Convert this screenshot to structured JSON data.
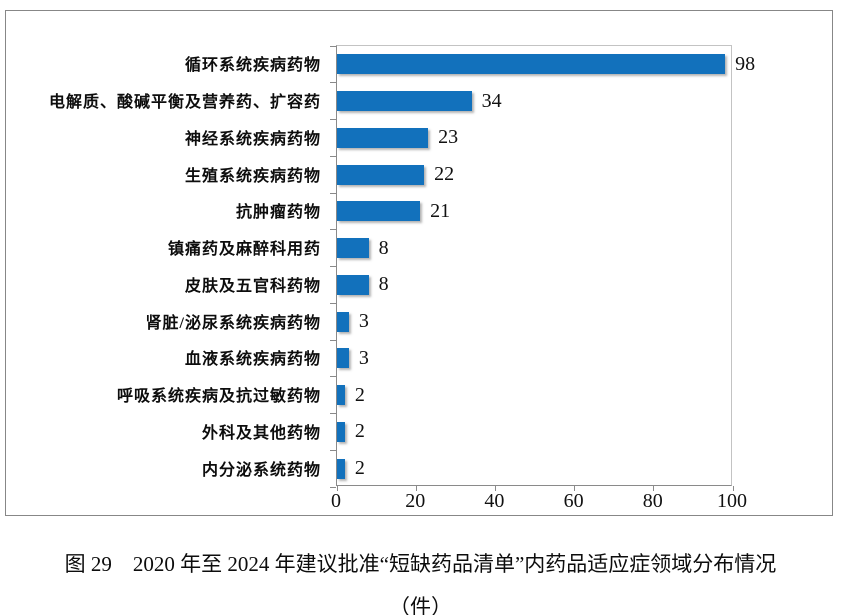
{
  "figure": {
    "caption_line1": "图 29　2020 年至 2024 年建议批准“短缺药品清单”内药品适应症领域分布情况",
    "caption_line2": "（件）"
  },
  "chart_data": {
    "type": "bar",
    "orientation": "horizontal",
    "title": "",
    "categories": [
      "循环系统疾病药物",
      "电解质、酸碱平衡及营养药、扩容药",
      "神经系统疾病药物",
      "生殖系统疾病药物",
      "抗肿瘤药物",
      "镇痛药及麻醉科用药",
      "皮肤及五官科药物",
      "肾脏/泌尿系统疾病药物",
      "血液系统疾病药物",
      "呼吸系统疾病及抗过敏药物",
      "外科及其他药物",
      "内分泌系统药物"
    ],
    "values": [
      98,
      34,
      23,
      22,
      21,
      8,
      8,
      3,
      3,
      2,
      2,
      2
    ],
    "x_ticks": [
      0,
      20,
      40,
      60,
      80,
      100
    ],
    "xlim": [
      0,
      100
    ],
    "unit": "件",
    "bar_color": "#1271BC",
    "grid": false,
    "legend_position": "none",
    "data_labels_shown": true
  }
}
